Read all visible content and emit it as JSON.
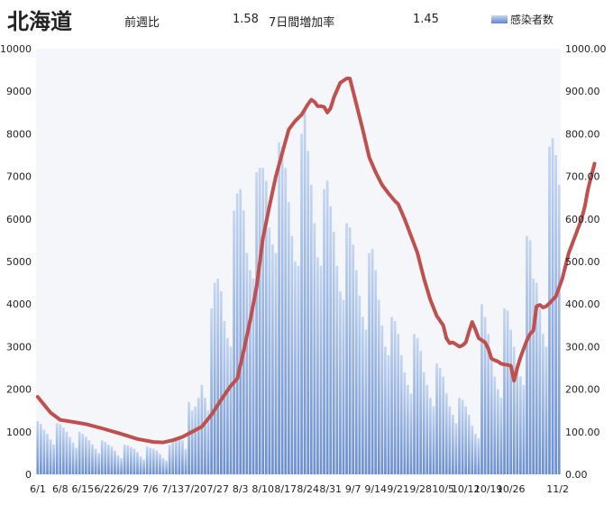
{
  "header": {
    "title": "北海道",
    "weekly_ratio_label": "前週比",
    "weekly_ratio_value": "1.58",
    "growth_label": "7日間増加率",
    "growth_value": "1.45"
  },
  "chart_data": {
    "type": "bar",
    "title": "北海道",
    "legend": {
      "entries": [
        "感染者数"
      ],
      "placement": "top-right"
    },
    "grid": false,
    "y_left": {
      "min": 0,
      "max": 10000,
      "ticks": [
        "0",
        "1000",
        "2000",
        "3000",
        "4000",
        "5000",
        "6000",
        "7000",
        "8000",
        "9000",
        "10000"
      ]
    },
    "y_right": {
      "min": 0,
      "max": 1000,
      "ticks": [
        "0.00",
        "100.00",
        "200.00",
        "300.00",
        "400.00",
        "500.00",
        "600.00",
        "700.00",
        "800.00",
        "900.00",
        "1000.00"
      ]
    },
    "x_tick_labels": [
      "6/1",
      "6/8",
      "6/15",
      "6/22",
      "6/29",
      "7/6",
      "7/13",
      "7/20",
      "7/27",
      "8/3",
      "8/10",
      "8/17",
      "8/24",
      "8/31",
      "9/7",
      "9/14",
      "9/21",
      "9/28",
      "10/5",
      "10/12",
      "10/19",
      "10/26",
      "11/2"
    ],
    "series": [
      {
        "name": "感染者数",
        "axis": "left",
        "type": "bar",
        "color": "#7fa2dc",
        "values": [
          1250,
          1180,
          1050,
          950,
          820,
          700,
          1200,
          1180,
          1100,
          1000,
          880,
          750,
          620,
          1000,
          950,
          880,
          800,
          700,
          600,
          500,
          800,
          760,
          700,
          650,
          560,
          450,
          380,
          700,
          680,
          640,
          600,
          520,
          420,
          350,
          650,
          620,
          600,
          560,
          480,
          380,
          320,
          700,
          780,
          850,
          900,
          800,
          600,
          1700,
          1500,
          1600,
          1800,
          2100,
          1800,
          1500,
          3900,
          4500,
          4600,
          4300,
          3600,
          3200,
          3000,
          6200,
          6600,
          6700,
          6200,
          5200,
          4800,
          4600,
          7100,
          7200,
          7200,
          6900,
          5800,
          5400,
          5200,
          7800,
          7700,
          7200,
          6400,
          5600,
          5000,
          4900,
          8000,
          8600,
          7600,
          6800,
          5900,
          5100,
          4900,
          6700,
          6900,
          6300,
          5700,
          4900,
          4300,
          4100,
          5900,
          5800,
          5400,
          4800,
          4200,
          3700,
          3400,
          5200,
          5300,
          4800,
          4100,
          3500,
          3000,
          2800,
          3700,
          3600,
          3300,
          2800,
          2400,
          2100,
          1900,
          3300,
          3200,
          2900,
          2400,
          2100,
          1800,
          1600,
          2600,
          2500,
          2300,
          1900,
          1600,
          1400,
          1200,
          1800,
          1750,
          1600,
          1400,
          1150,
          950,
          850,
          4000,
          3700,
          3300,
          2700,
          2300,
          2000,
          1800,
          3900,
          3850,
          3400,
          3000,
          2600,
          2300,
          2100,
          5600,
          5500,
          4600,
          4500,
          3900,
          3300,
          3000,
          7700,
          7900,
          7500,
          6800
        ]
      },
      {
        "name": "7日間増加率",
        "axis": "right",
        "type": "line",
        "color": "#c0504d",
        "points": [
          [
            0,
            182
          ],
          [
            4,
            145
          ],
          [
            7,
            128
          ],
          [
            11,
            123
          ],
          [
            15,
            118
          ],
          [
            20,
            108
          ],
          [
            26,
            95
          ],
          [
            31,
            83
          ],
          [
            36,
            76
          ],
          [
            39,
            75
          ],
          [
            42,
            80
          ],
          [
            45,
            88
          ],
          [
            48,
            100
          ],
          [
            51,
            112
          ],
          [
            54,
            140
          ],
          [
            57,
            175
          ],
          [
            60,
            208
          ],
          [
            62,
            225
          ],
          [
            64,
            290
          ],
          [
            66,
            360
          ],
          [
            68,
            440
          ],
          [
            70,
            555
          ],
          [
            72,
            630
          ],
          [
            74,
            700
          ],
          [
            76,
            755
          ],
          [
            78,
            810
          ],
          [
            80,
            830
          ],
          [
            82,
            845
          ],
          [
            84,
            870
          ],
          [
            85,
            880
          ],
          [
            86,
            875
          ],
          [
            87,
            865
          ],
          [
            88,
            865
          ],
          [
            89,
            863
          ],
          [
            90,
            850
          ],
          [
            91,
            860
          ],
          [
            92,
            885
          ],
          [
            94,
            920
          ],
          [
            96,
            930
          ],
          [
            97,
            930
          ],
          [
            99,
            870
          ],
          [
            101,
            810
          ],
          [
            103,
            745
          ],
          [
            105,
            710
          ],
          [
            107,
            680
          ],
          [
            109,
            660
          ],
          [
            111,
            642
          ],
          [
            112,
            635
          ],
          [
            114,
            600
          ],
          [
            116,
            560
          ],
          [
            118,
            520
          ],
          [
            120,
            460
          ],
          [
            122,
            410
          ],
          [
            124,
            372
          ],
          [
            126,
            350
          ],
          [
            127,
            320
          ],
          [
            128,
            308
          ],
          [
            129,
            310
          ],
          [
            130,
            305
          ],
          [
            131,
            300
          ],
          [
            132,
            303
          ],
          [
            133,
            310
          ],
          [
            134,
            335
          ],
          [
            135,
            358
          ],
          [
            136,
            340
          ],
          [
            137,
            320
          ],
          [
            138,
            315
          ],
          [
            139,
            310
          ],
          [
            140,
            295
          ],
          [
            141,
            272
          ],
          [
            142,
            268
          ],
          [
            143,
            265
          ],
          [
            144,
            260
          ],
          [
            145,
            258
          ],
          [
            146,
            257
          ],
          [
            147,
            255
          ],
          [
            148,
            220
          ],
          [
            149,
            250
          ],
          [
            150,
            275
          ],
          [
            151,
            295
          ],
          [
            152,
            315
          ],
          [
            153,
            330
          ],
          [
            154,
            338
          ],
          [
            155,
            395
          ],
          [
            156,
            398
          ],
          [
            157,
            392
          ],
          [
            158,
            395
          ],
          [
            159,
            402
          ],
          [
            161,
            418
          ],
          [
            163,
            460
          ],
          [
            165,
            520
          ],
          [
            167,
            560
          ],
          [
            169,
            600
          ],
          [
            170,
            630
          ],
          [
            171,
            670
          ],
          [
            172,
            700
          ],
          [
            173,
            730
          ]
        ]
      }
    ]
  }
}
